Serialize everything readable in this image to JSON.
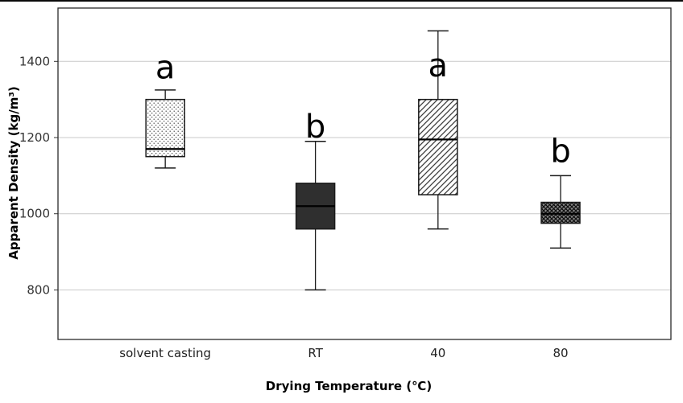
{
  "figure": {
    "x_axis_title": "Drying Temperature (℃)",
    "y_axis_title": "Apparent Density (kg/m³)"
  },
  "chart_data": {
    "type": "boxplot",
    "title": "",
    "xlabel": "Drying Temperature (℃)",
    "ylabel": "Apparent Density (kg/m³)",
    "ylim": [
      670,
      1540
    ],
    "yticks": [
      800,
      1000,
      1200,
      1400
    ],
    "grid": "horizontal",
    "legend": "none",
    "categories": [
      "solvent casting",
      "RT",
      "40",
      "80"
    ],
    "series": [
      {
        "name": "solvent casting",
        "pattern": "dotted",
        "whisker_low": 1120,
        "q1": 1150,
        "median": 1170,
        "q3": 1300,
        "whisker_high": 1325,
        "sig_letter": "a",
        "sig_letter_value": 1385
      },
      {
        "name": "RT",
        "pattern": "solid-dark",
        "whisker_low": 800,
        "q1": 960,
        "median": 1020,
        "q3": 1080,
        "whisker_high": 1190,
        "sig_letter": "b",
        "sig_letter_value": 1230
      },
      {
        "name": "40",
        "pattern": "diagonal-hatch",
        "whisker_low": 960,
        "q1": 1050,
        "median": 1195,
        "q3": 1300,
        "whisker_high": 1480,
        "sig_letter": "a",
        "sig_letter_value": 1390
      },
      {
        "name": "80",
        "pattern": "crosshatch",
        "whisker_low": 910,
        "q1": 975,
        "median": 1000,
        "q3": 1030,
        "whisker_high": 1100,
        "sig_letter": "b",
        "sig_letter_value": 1165
      }
    ]
  }
}
